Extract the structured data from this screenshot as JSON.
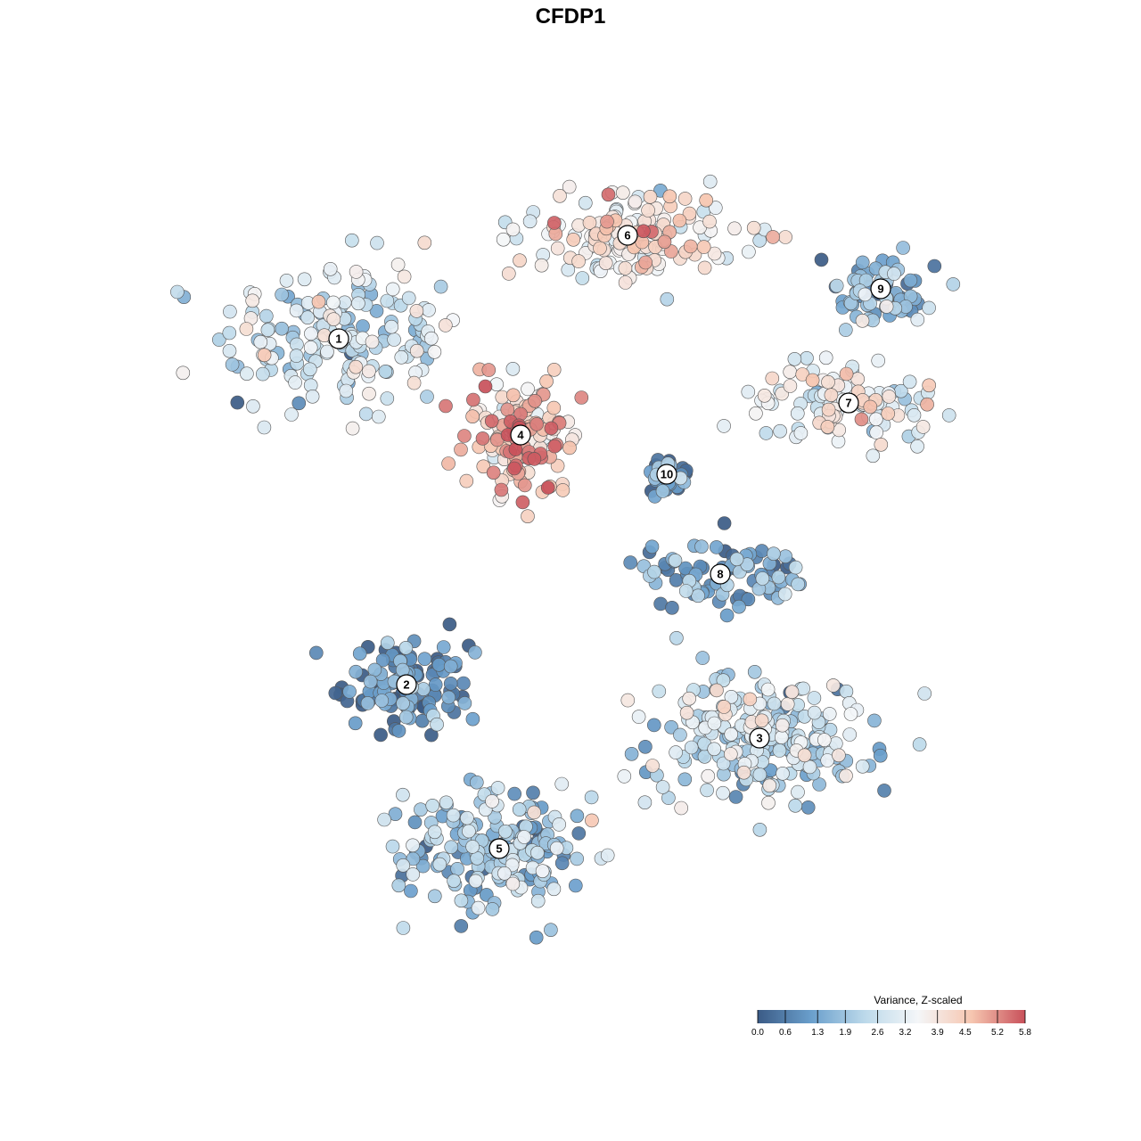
{
  "chart_data": {
    "type": "scatter",
    "title": "CFDP1",
    "xlabel": "",
    "ylabel": "",
    "grid": false,
    "color_scale": {
      "name": "Variance, Z-scaled",
      "min": 0.0,
      "max": 5.8,
      "ticks": [
        "0.0",
        "0.6",
        "1.3",
        "1.9",
        "2.6",
        "3.2",
        "3.9",
        "4.5",
        "5.2",
        "5.8"
      ],
      "colors": [
        "#3b5b86",
        "#6a9fcc",
        "#bcd9ea",
        "#f4f6f8",
        "#f6c6b0",
        "#c8505a"
      ],
      "placement": "bottom-right"
    },
    "clusters": [
      {
        "label": "1",
        "x": -6.5,
        "y": 6.5,
        "value": 2.7
      },
      {
        "label": "2",
        "x": -4.6,
        "y": -3.2,
        "value": 0.6
      },
      {
        "label": "3",
        "x": 5.3,
        "y": -4.7,
        "value": 2.4
      },
      {
        "label": "4",
        "x": -1.4,
        "y": 3.8,
        "value": 4.6
      },
      {
        "label": "5",
        "x": -2.0,
        "y": -7.8,
        "value": 2.0
      },
      {
        "label": "6",
        "x": 1.6,
        "y": 9.4,
        "value": 3.7
      },
      {
        "label": "7",
        "x": 7.8,
        "y": 4.7,
        "value": 3.3
      },
      {
        "label": "8",
        "x": 4.2,
        "y": -0.1,
        "value": 1.1
      },
      {
        "label": "9",
        "x": 8.7,
        "y": 7.9,
        "value": 1.5
      },
      {
        "label": "10",
        "x": 2.7,
        "y": 2.7,
        "value": 0.8
      }
    ],
    "xlim": [
      -12.5,
      12.5
    ],
    "ylim": [
      -12.5,
      12.5
    ]
  }
}
